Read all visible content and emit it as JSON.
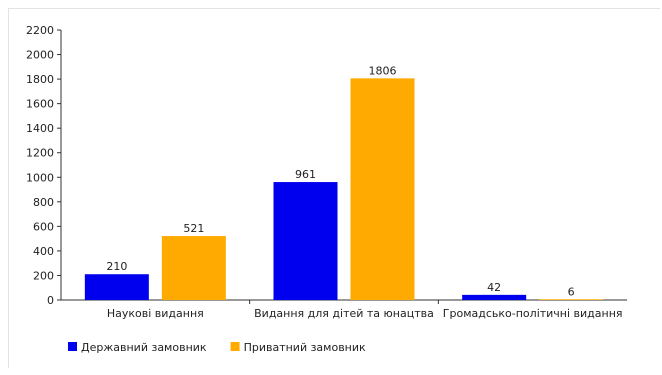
{
  "chart_data": {
    "type": "bar",
    "categories": [
      "Наукові видання",
      "Видання для дітей та юнацтва",
      "Громадсько-політичні видання"
    ],
    "series": [
      {
        "name": "Державний замовник",
        "values": [
          210,
          961,
          42
        ],
        "color": "#0000ee"
      },
      {
        "name": "Приватний замовник",
        "values": [
          521,
          1806,
          6
        ],
        "color": "#ffaa00"
      }
    ],
    "ylim": [
      0,
      2200
    ],
    "yticks": [
      0,
      200,
      400,
      600,
      800,
      1000,
      1200,
      1400,
      1600,
      1800,
      2000,
      2200
    ],
    "grid": false,
    "legend": "bottom-left"
  }
}
